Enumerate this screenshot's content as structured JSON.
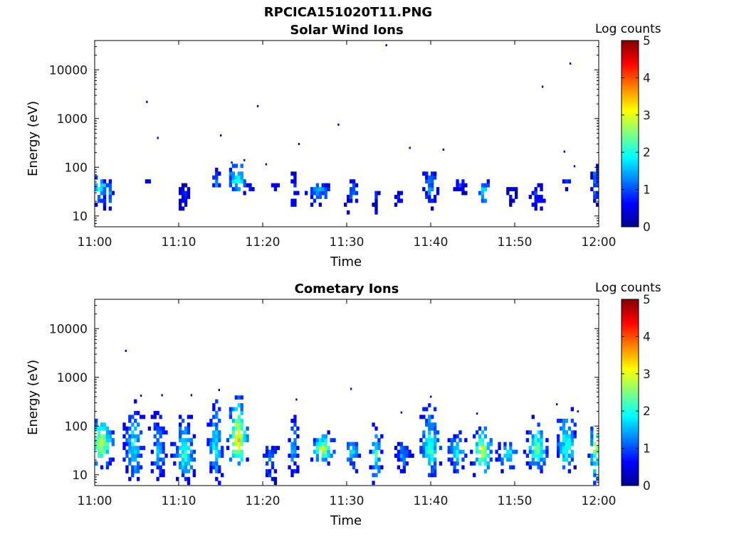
{
  "page": {
    "title": "RPCICA151020T11.PNG"
  },
  "colorbar": {
    "title": "Log counts",
    "ticks": [
      "0",
      "1",
      "2",
      "3",
      "4",
      "5"
    ],
    "range": [
      0,
      5
    ]
  },
  "colormap": [
    "#00008f",
    "#0000ff",
    "#0080ff",
    "#00ffff",
    "#80ff80",
    "#ffff00",
    "#ff8000",
    "#ff0000",
    "#800000"
  ],
  "chart_data": [
    {
      "type": "heatmap",
      "title": "Solar Wind Ions",
      "xlabel": "Time",
      "ylabel": "Energy (eV)",
      "y_scale": "log",
      "ylim": [
        6,
        40000
      ],
      "xlim": [
        "11:00",
        "12:00"
      ],
      "x_ticks": [
        "11:00",
        "11:10",
        "11:20",
        "11:30",
        "11:40",
        "11:50",
        "12:00"
      ],
      "y_ticks": [
        "10",
        "100",
        "1000",
        "10000"
      ],
      "y_tick_values": [
        10,
        100,
        1000,
        10000
      ],
      "color_label": "Log counts",
      "color_range": [
        0,
        5
      ],
      "clusters": [
        {
          "t": 0.5,
          "e": 35,
          "lvl": 2.0,
          "w": 1.5,
          "hi": 65,
          "lo": 15
        },
        {
          "t": 1.5,
          "e": 32,
          "lvl": 1.5,
          "w": 1.0,
          "hi": 50,
          "lo": 12
        },
        {
          "t": 6.3,
          "e": 45,
          "lvl": 0.7,
          "w": 0.3,
          "hi": 65,
          "lo": 38
        },
        {
          "t": 10.5,
          "e": 28,
          "lvl": 0.8,
          "w": 0.8,
          "hi": 40,
          "lo": 12
        },
        {
          "t": 14.3,
          "e": 40,
          "lvl": 1.2,
          "w": 0.6,
          "hi": 90,
          "lo": 25
        },
        {
          "t": 16.8,
          "e": 50,
          "lvl": 2.2,
          "w": 1.2,
          "hi": 130,
          "lo": 25
        },
        {
          "t": 18.5,
          "e": 35,
          "lvl": 0.9,
          "w": 0.5,
          "hi": 45,
          "lo": 25
        },
        {
          "t": 21.5,
          "e": 38,
          "lvl": 0.8,
          "w": 0.7,
          "hi": 45,
          "lo": 30
        },
        {
          "t": 23.6,
          "e": 40,
          "lvl": 0.9,
          "w": 0.4,
          "hi": 80,
          "lo": 12
        },
        {
          "t": 26.5,
          "e": 32,
          "lvl": 1.6,
          "w": 1.5,
          "hi": 45,
          "lo": 15
        },
        {
          "t": 30.5,
          "e": 32,
          "lvl": 1.2,
          "w": 0.8,
          "hi": 50,
          "lo": 10
        },
        {
          "t": 33.3,
          "e": 28,
          "lvl": 0.7,
          "w": 0.4,
          "hi": 38,
          "lo": 7
        },
        {
          "t": 36.2,
          "e": 22,
          "lvl": 0.7,
          "w": 0.6,
          "hi": 30,
          "lo": 12
        },
        {
          "t": 39.8,
          "e": 35,
          "lvl": 1.4,
          "w": 0.9,
          "hi": 100,
          "lo": 12
        },
        {
          "t": 43.4,
          "e": 38,
          "lvl": 0.9,
          "w": 0.7,
          "hi": 60,
          "lo": 25
        },
        {
          "t": 46.2,
          "e": 32,
          "lvl": 1.7,
          "w": 0.8,
          "hi": 60,
          "lo": 12
        },
        {
          "t": 49.5,
          "e": 30,
          "lvl": 0.7,
          "w": 0.6,
          "hi": 40,
          "lo": 12
        },
        {
          "t": 52.5,
          "e": 28,
          "lvl": 0.9,
          "w": 0.9,
          "hi": 45,
          "lo": 12
        },
        {
          "t": 56.0,
          "e": 50,
          "lvl": 1.1,
          "w": 0.6,
          "hi": 55,
          "lo": 35
        },
        {
          "t": 59.5,
          "e": 50,
          "lvl": 1.5,
          "w": 0.5,
          "hi": 110,
          "lo": 15
        }
      ],
      "sparse_points": [
        {
          "t": 6.2,
          "e": 2200
        },
        {
          "t": 7.5,
          "e": 400
        },
        {
          "t": 15.0,
          "e": 450
        },
        {
          "t": 16.3,
          "e": 125
        },
        {
          "t": 17.8,
          "e": 140
        },
        {
          "t": 19.4,
          "e": 1800
        },
        {
          "t": 20.4,
          "e": 115
        },
        {
          "t": 24.3,
          "e": 300
        },
        {
          "t": 29.0,
          "e": 750
        },
        {
          "t": 34.7,
          "e": 32000
        },
        {
          "t": 37.5,
          "e": 250
        },
        {
          "t": 41.5,
          "e": 230
        },
        {
          "t": 53.3,
          "e": 4500
        },
        {
          "t": 55.9,
          "e": 210
        },
        {
          "t": 56.6,
          "e": 13500
        },
        {
          "t": 57.1,
          "e": 105
        }
      ]
    },
    {
      "type": "heatmap",
      "title": "Cometary Ions",
      "xlabel": "Time",
      "ylabel": "Energy (eV)",
      "y_scale": "log",
      "ylim": [
        6,
        40000
      ],
      "xlim": [
        "11:00",
        "12:00"
      ],
      "x_ticks": [
        "11:00",
        "11:10",
        "11:20",
        "11:30",
        "11:40",
        "11:50",
        "12:00"
      ],
      "y_ticks": [
        "10",
        "100",
        "1000",
        "10000"
      ],
      "y_tick_values": [
        10,
        100,
        1000,
        10000
      ],
      "color_label": "Log counts",
      "color_range": [
        0,
        5
      ],
      "clusters": [
        {
          "t": 0.6,
          "e": 38,
          "lvl": 3.0,
          "w": 1.6,
          "hi": 160,
          "lo": 12
        },
        {
          "t": 4.5,
          "e": 30,
          "lvl": 2.0,
          "w": 1.2,
          "hi": 400,
          "lo": 6
        },
        {
          "t": 7.5,
          "e": 28,
          "lvl": 1.6,
          "w": 1.1,
          "hi": 250,
          "lo": 6
        },
        {
          "t": 10.5,
          "e": 25,
          "lvl": 2.2,
          "w": 1.4,
          "hi": 150,
          "lo": 6
        },
        {
          "t": 14.2,
          "e": 30,
          "lvl": 2.0,
          "w": 1.0,
          "hi": 350,
          "lo": 6
        },
        {
          "t": 16.9,
          "e": 42,
          "lvl": 3.5,
          "w": 1.2,
          "hi": 400,
          "lo": 12
        },
        {
          "t": 20.8,
          "e": 22,
          "lvl": 1.4,
          "w": 1.0,
          "hi": 40,
          "lo": 6
        },
        {
          "t": 23.5,
          "e": 30,
          "lvl": 1.6,
          "w": 0.7,
          "hi": 150,
          "lo": 8
        },
        {
          "t": 27.0,
          "e": 30,
          "lvl": 3.0,
          "w": 1.4,
          "hi": 70,
          "lo": 15
        },
        {
          "t": 30.5,
          "e": 28,
          "lvl": 1.7,
          "w": 1.0,
          "hi": 60,
          "lo": 8
        },
        {
          "t": 33.3,
          "e": 22,
          "lvl": 2.2,
          "w": 0.7,
          "hi": 100,
          "lo": 6
        },
        {
          "t": 36.5,
          "e": 25,
          "lvl": 1.5,
          "w": 1.0,
          "hi": 45,
          "lo": 8
        },
        {
          "t": 39.8,
          "e": 28,
          "lvl": 2.3,
          "w": 1.3,
          "hi": 300,
          "lo": 8
        },
        {
          "t": 43.0,
          "e": 30,
          "lvl": 2.0,
          "w": 1.2,
          "hi": 70,
          "lo": 10
        },
        {
          "t": 46.0,
          "e": 28,
          "lvl": 3.0,
          "w": 1.3,
          "hi": 100,
          "lo": 8
        },
        {
          "t": 49.0,
          "e": 25,
          "lvl": 2.1,
          "w": 1.3,
          "hi": 45,
          "lo": 10
        },
        {
          "t": 52.5,
          "e": 30,
          "lvl": 2.5,
          "w": 1.4,
          "hi": 150,
          "lo": 10
        },
        {
          "t": 56.0,
          "e": 30,
          "lvl": 2.2,
          "w": 1.3,
          "hi": 250,
          "lo": 10
        },
        {
          "t": 59.5,
          "e": 35,
          "lvl": 2.8,
          "w": 0.8,
          "hi": 170,
          "lo": 6
        }
      ],
      "sparse_points": [
        {
          "t": 3.7,
          "e": 3500
        },
        {
          "t": 5.5,
          "e": 420
        },
        {
          "t": 8.0,
          "e": 430
        },
        {
          "t": 11.5,
          "e": 430
        },
        {
          "t": 14.8,
          "e": 550
        },
        {
          "t": 24.0,
          "e": 350
        },
        {
          "t": 30.5,
          "e": 580
        },
        {
          "t": 36.5,
          "e": 190
        },
        {
          "t": 40.0,
          "e": 400
        },
        {
          "t": 45.5,
          "e": 180
        },
        {
          "t": 55.0,
          "e": 280
        },
        {
          "t": 57.5,
          "e": 200
        }
      ]
    }
  ]
}
